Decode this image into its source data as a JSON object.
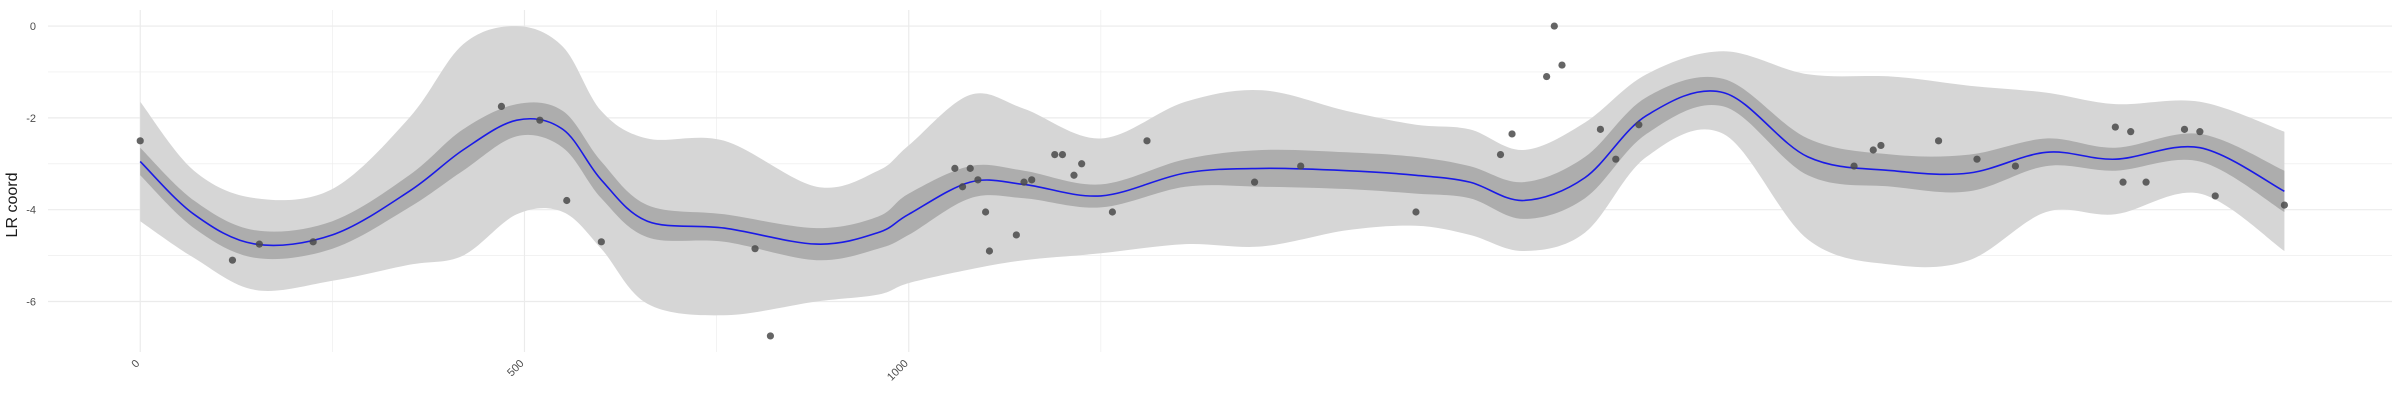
{
  "chart_data": {
    "type": "line",
    "title": "",
    "xlabel": "",
    "ylabel": "LR coord",
    "xlim": [
      -120,
      2930
    ],
    "ylim": [
      -7.1,
      0.35
    ],
    "x_ticks": [
      0,
      500,
      1000
    ],
    "x_tick_labels": [
      "0",
      "500",
      "1000"
    ],
    "y_ticks": [
      0,
      -2,
      -4,
      -6
    ],
    "y_tick_labels": [
      "0",
      "-2",
      "-4",
      "-6"
    ],
    "grid": true,
    "legend": "none",
    "colors": {
      "fit_line": "#1a1ae6",
      "inner_band": "#adadad",
      "outer_band": "#d6d6d6",
      "points": "#4a4a4a",
      "grid": "#ebebeb"
    },
    "series": [
      {
        "x": [
          0,
          70,
          150,
          250,
          350,
          420,
          490,
          550,
          600,
          660,
          760,
          880,
          960,
          1000,
          1080,
          1150,
          1250,
          1360,
          1460,
          1570,
          1660,
          1730,
          1800,
          1880,
          1960,
          2060,
          2170,
          2280,
          2380,
          2480,
          2570,
          2680,
          2790
        ],
        "y": [
          -2.95,
          -4.1,
          -4.75,
          -4.55,
          -3.6,
          -2.7,
          -2.05,
          -2.25,
          -3.35,
          -4.25,
          -4.4,
          -4.75,
          -4.5,
          -4.1,
          -3.4,
          -3.45,
          -3.7,
          -3.2,
          -3.1,
          -3.15,
          -3.25,
          -3.4,
          -3.8,
          -3.3,
          -1.95,
          -1.45,
          -2.85,
          -3.15,
          -3.2,
          -2.75,
          -2.9,
          -2.65,
          -3.6
        ],
        "inner": [
          0.3,
          0.3,
          0.3,
          0.3,
          0.35,
          0.45,
          0.35,
          0.4,
          0.4,
          0.35,
          0.3,
          0.35,
          0.35,
          0.45,
          0.35,
          0.3,
          0.25,
          0.3,
          0.4,
          0.4,
          0.4,
          0.35,
          0.4,
          0.45,
          0.4,
          0.3,
          0.4,
          0.35,
          0.4,
          0.3,
          0.25,
          0.3,
          0.45
        ],
        "outer": [
          1.3,
          0.95,
          1.0,
          1.0,
          1.6,
          2.3,
          2.05,
          1.8,
          1.5,
          1.8,
          1.9,
          1.25,
          1.35,
          1.5,
          1.9,
          1.65,
          1.25,
          1.55,
          1.7,
          1.3,
          1.1,
          1.15,
          1.1,
          1.2,
          0.9,
          0.9,
          1.8,
          2.05,
          1.9,
          1.3,
          1.2,
          1.0,
          1.3
        ]
      }
    ],
    "points": [
      {
        "x": 0,
        "y": -2.5
      },
      {
        "x": 120,
        "y": -5.1
      },
      {
        "x": 155,
        "y": -4.75
      },
      {
        "x": 225,
        "y": -4.7
      },
      {
        "x": 470,
        "y": -1.75
      },
      {
        "x": 520,
        "y": -2.05
      },
      {
        "x": 555,
        "y": -3.8
      },
      {
        "x": 600,
        "y": -4.7
      },
      {
        "x": 800,
        "y": -4.85
      },
      {
        "x": 820,
        "y": -6.75
      },
      {
        "x": 1060,
        "y": -3.1
      },
      {
        "x": 1070,
        "y": -3.5
      },
      {
        "x": 1080,
        "y": -3.1
      },
      {
        "x": 1090,
        "y": -3.35
      },
      {
        "x": 1100,
        "y": -4.05
      },
      {
        "x": 1105,
        "y": -4.9
      },
      {
        "x": 1140,
        "y": -4.55
      },
      {
        "x": 1150,
        "y": -3.4
      },
      {
        "x": 1160,
        "y": -3.35
      },
      {
        "x": 1190,
        "y": -2.8
      },
      {
        "x": 1200,
        "y": -2.8
      },
      {
        "x": 1215,
        "y": -3.25
      },
      {
        "x": 1225,
        "y": -3.0
      },
      {
        "x": 1265,
        "y": -4.05
      },
      {
        "x": 1310,
        "y": -2.5
      },
      {
        "x": 1450,
        "y": -3.4
      },
      {
        "x": 1510,
        "y": -3.05
      },
      {
        "x": 1660,
        "y": -4.05
      },
      {
        "x": 1770,
        "y": -2.8
      },
      {
        "x": 1785,
        "y": -2.35
      },
      {
        "x": 1830,
        "y": -1.1
      },
      {
        "x": 1840,
        "y": 0.0
      },
      {
        "x": 1850,
        "y": -0.85
      },
      {
        "x": 1900,
        "y": -2.25
      },
      {
        "x": 1920,
        "y": -2.9
      },
      {
        "x": 1950,
        "y": -2.15
      },
      {
        "x": 2230,
        "y": -3.05
      },
      {
        "x": 2255,
        "y": -2.7
      },
      {
        "x": 2265,
        "y": -2.6
      },
      {
        "x": 2340,
        "y": -2.5
      },
      {
        "x": 2390,
        "y": -2.9
      },
      {
        "x": 2440,
        "y": -3.05
      },
      {
        "x": 2570,
        "y": -2.2
      },
      {
        "x": 2580,
        "y": -3.4
      },
      {
        "x": 2590,
        "y": -2.3
      },
      {
        "x": 2610,
        "y": -3.4
      },
      {
        "x": 2660,
        "y": -2.25
      },
      {
        "x": 2680,
        "y": -2.3
      },
      {
        "x": 2700,
        "y": -3.7
      },
      {
        "x": 2790,
        "y": -3.9
      }
    ]
  }
}
